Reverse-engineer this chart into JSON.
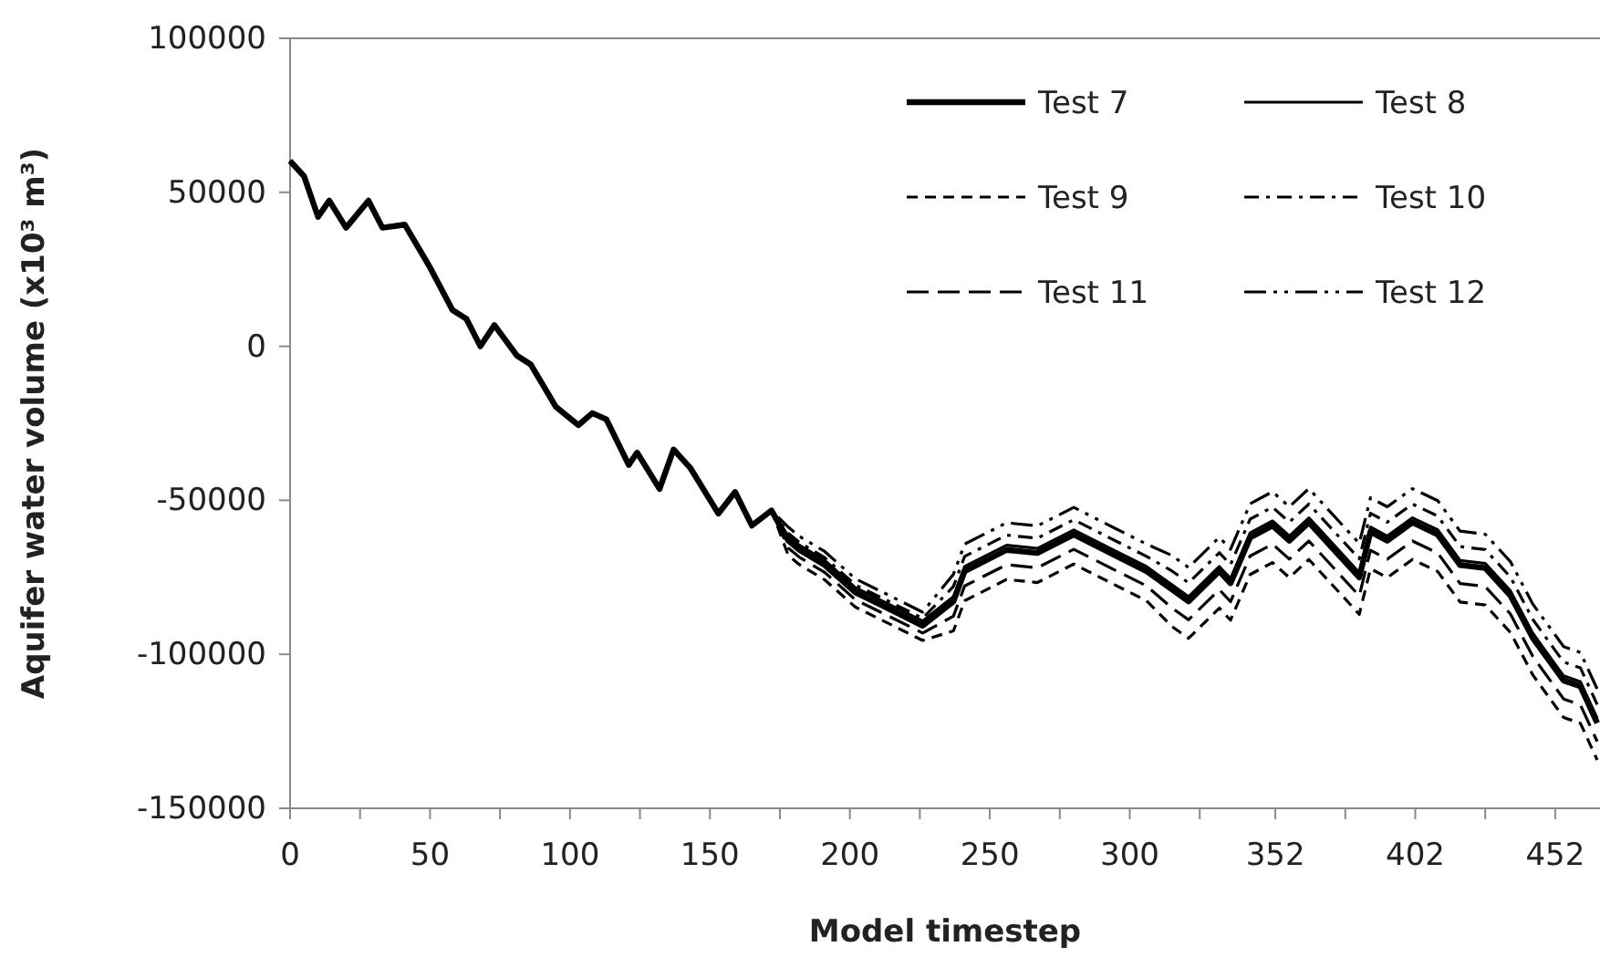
{
  "chart_data": {
    "type": "line",
    "xlabel": "Model timestep",
    "ylabel": "Aquifer water volume (x10³ m³)",
    "x": [
      0,
      5,
      10,
      14,
      20,
      28,
      33,
      41,
      50,
      58,
      63,
      68,
      73,
      81,
      86,
      95,
      103,
      108,
      113,
      121,
      124,
      132,
      137,
      143,
      153,
      159,
      165,
      172,
      178,
      182,
      191,
      202,
      213,
      226,
      237,
      241,
      256,
      267,
      280,
      295,
      306,
      315,
      321,
      332,
      336,
      343,
      351,
      357,
      364,
      373,
      382,
      386,
      392,
      401,
      410,
      418,
      427,
      436,
      444,
      455,
      461,
      467
    ],
    "xlim": [
      0,
      468
    ],
    "xticks": [
      0,
      {
        "value": 25,
        "label": null
      },
      50,
      {
        "value": 75,
        "label": null
      },
      100,
      {
        "value": 125,
        "label": null
      },
      150,
      {
        "value": 175,
        "label": null
      },
      200,
      {
        "value": 225,
        "label": null
      },
      250,
      {
        "value": 275,
        "label": null
      },
      300,
      {
        "value": 325,
        "label": null
      },
      352,
      {
        "value": 377,
        "label": null
      },
      402,
      {
        "value": 427,
        "label": null
      },
      452
    ],
    "ylim": [
      -150000,
      100000
    ],
    "yticks": [
      -150000,
      -100000,
      -50000,
      0,
      50000,
      100000
    ],
    "grid": false,
    "legend": "top right",
    "series": [
      {
        "name": "Test 7",
        "color": "#000000",
        "line_style": "solid",
        "values": [
          60200,
          55200,
          42000,
          47300,
          38500,
          47300,
          38500,
          39500,
          25600,
          11800,
          8900,
          0,
          6900,
          -3000,
          -5900,
          -19700,
          -25600,
          -21700,
          -23700,
          -38500,
          -34500,
          -46300,
          -33500,
          -39500,
          -54300,
          -47300,
          -58200,
          -53300,
          -63100,
          -66100,
          -71000,
          -79900,
          -84800,
          -90700,
          -82800,
          -73000,
          -66100,
          -67100,
          -61100,
          -68000,
          -73000,
          -78900,
          -82800,
          -73000,
          -76900,
          -62100,
          -58200,
          -63100,
          -57200,
          -66100,
          -75000,
          -60200,
          -63100,
          -57200,
          -61100,
          -71000,
          -72000,
          -80900,
          -94700,
          -108500,
          -110400,
          -122300
        ]
      },
      {
        "name": "Test 8",
        "color": "#000000",
        "line_style": "solid",
        "values": [
          60200,
          55200,
          42000,
          47300,
          38500,
          47300,
          38500,
          39500,
          25600,
          11800,
          8900,
          0,
          6900,
          -3000,
          -5900,
          -19700,
          -25600,
          -21700,
          -23700,
          -38500,
          -34500,
          -46300,
          -33500,
          -39500,
          -54300,
          -47300,
          -58200,
          -53300,
          -61600,
          -64600,
          -69500,
          -78400,
          -83300,
          -89200,
          -81300,
          -71500,
          -64600,
          -65600,
          -59600,
          -66500,
          -71500,
          -77400,
          -81300,
          -71500,
          -75400,
          -60600,
          -56700,
          -61600,
          -55700,
          -64600,
          -73500,
          -58700,
          -61600,
          -55700,
          -59600,
          -69500,
          -70500,
          -79400,
          -93200,
          -107000,
          -108900,
          -120800
        ]
      },
      {
        "name": "Test 9",
        "color": "#000000",
        "line_style": "dashed",
        "values": [
          60200,
          55200,
          42000,
          47300,
          38500,
          47300,
          38500,
          39500,
          25600,
          11800,
          8900,
          0,
          6900,
          -3000,
          -5900,
          -19700,
          -25600,
          -21700,
          -23700,
          -38500,
          -34500,
          -46300,
          -33500,
          -39500,
          -54300,
          -47300,
          -58200,
          -53300,
          -67900,
          -70900,
          -75800,
          -84700,
          -89600,
          -95500,
          -92400,
          -82600,
          -75700,
          -76700,
          -70700,
          -77600,
          -82600,
          -90900,
          -94800,
          -85000,
          -88900,
          -74100,
          -70200,
          -75100,
          -69200,
          -78100,
          -87000,
          -72200,
          -75100,
          -69200,
          -73100,
          -83000,
          -84000,
          -92900,
          -106700,
          -120500,
          -122400,
          -134300
        ]
      },
      {
        "name": "Test 10",
        "color": "#000000",
        "line_style": "dashdot",
        "values": [
          60200,
          55200,
          42000,
          47300,
          38500,
          47300,
          38500,
          39500,
          25600,
          11800,
          8900,
          0,
          6900,
          -3000,
          -5900,
          -19700,
          -25600,
          -21700,
          -23700,
          -38500,
          -34500,
          -46300,
          -33500,
          -39500,
          -54300,
          -47300,
          -58200,
          -53300,
          -60700,
          -63700,
          -68600,
          -77500,
          -82400,
          -88300,
          -78000,
          -68200,
          -61300,
          -62300,
          -56300,
          -63200,
          -68200,
          -72900,
          -76800,
          -67000,
          -70900,
          -56100,
          -52200,
          -57100,
          -51200,
          -60100,
          -69000,
          -54200,
          -57100,
          -51200,
          -55100,
          -65000,
          -66000,
          -74900,
          -88700,
          -102500,
          -104400,
          -116300
        ]
      },
      {
        "name": "Test 11",
        "color": "#000000",
        "line_style": "longdash",
        "values": [
          60200,
          55200,
          42000,
          47300,
          38500,
          47300,
          38500,
          39500,
          25600,
          11800,
          8900,
          0,
          6900,
          -3000,
          -5900,
          -19700,
          -25600,
          -21700,
          -23700,
          -38500,
          -34500,
          -46300,
          -33500,
          -39500,
          -54300,
          -47300,
          -58200,
          -53300,
          -65500,
          -68500,
          -73400,
          -82300,
          -87200,
          -93100,
          -87600,
          -77800,
          -70900,
          -71900,
          -65900,
          -72800,
          -77800,
          -84900,
          -88800,
          -79000,
          -82900,
          -68100,
          -64200,
          -69100,
          -63200,
          -72100,
          -81000,
          -66200,
          -69100,
          -63200,
          -67100,
          -77000,
          -78000,
          -86900,
          -100700,
          -114500,
          -116400,
          -128300
        ]
      },
      {
        "name": "Test 12",
        "color": "#000000",
        "line_style": "dashdotdot",
        "values": [
          60200,
          55200,
          42000,
          47300,
          38500,
          47300,
          38500,
          39500,
          25600,
          11800,
          8900,
          0,
          6900,
          -3000,
          -5900,
          -19700,
          -25600,
          -21700,
          -23700,
          -38500,
          -34500,
          -46300,
          -33500,
          -39500,
          -54300,
          -47300,
          -58200,
          -53300,
          -58700,
          -61700,
          -66600,
          -75500,
          -80400,
          -86300,
          -74000,
          -64200,
          -57300,
          -58300,
          -52300,
          -59200,
          -64200,
          -67900,
          -71800,
          -62000,
          -65900,
          -51100,
          -47200,
          -52100,
          -46200,
          -55100,
          -64000,
          -49200,
          -52100,
          -46200,
          -50100,
          -60000,
          -61000,
          -69900,
          -83700,
          -97500,
          -99400,
          -111300
        ]
      }
    ]
  }
}
